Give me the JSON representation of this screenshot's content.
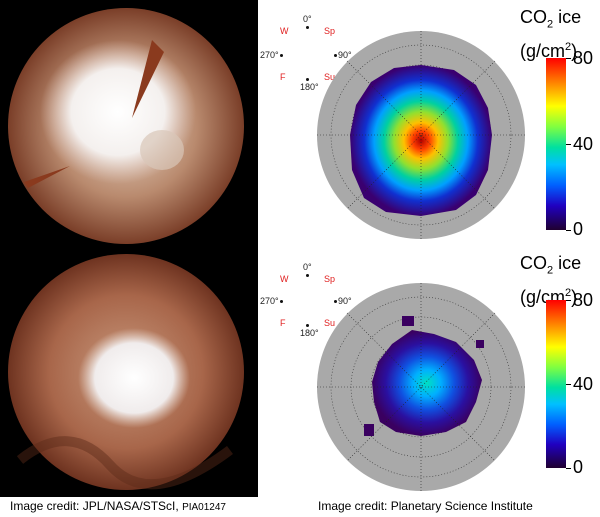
{
  "photo_credit": {
    "main": "Image credit: JPL/NASA/STScI, ",
    "id": "PIA01247"
  },
  "model_credit": "Image credit: Planetary Science Institute",
  "compass": {
    "north": "0°",
    "west": "W",
    "east": "Sp",
    "south": "Su",
    "fall": "F",
    "deg270": "270°",
    "deg90": "90°",
    "deg180": "180°"
  },
  "colorbar": {
    "title_line1": "CO",
    "title_sub": "2",
    "title_rest": " ice",
    "unit_open": "(g/cm",
    "unit_sup": "2",
    "unit_close": ")",
    "ticks": [
      "80",
      "40",
      "0"
    ]
  },
  "colors": {
    "red_labels": "#e02020",
    "background": "#ffffff",
    "photo_bg": "#000000"
  }
}
